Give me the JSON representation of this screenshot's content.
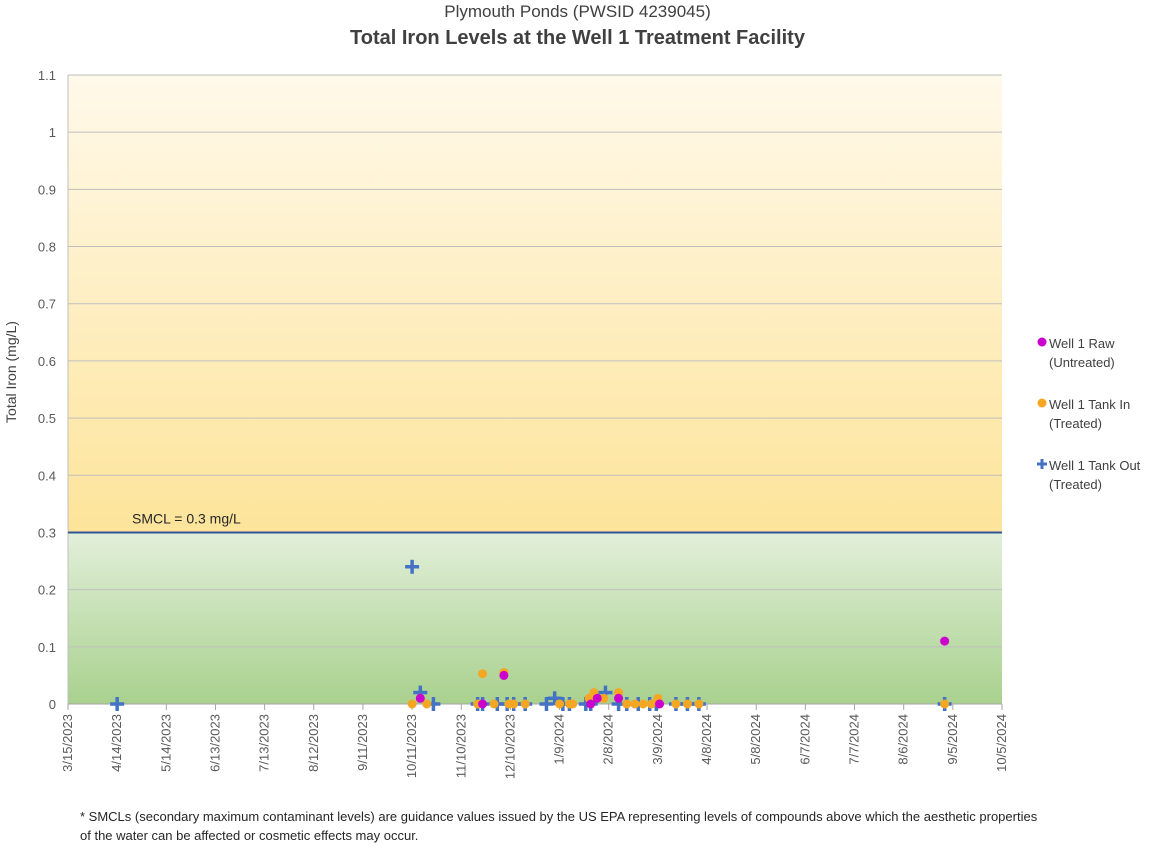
{
  "chart_data": {
    "type": "scatter",
    "subtitle": "Plymouth Ponds (PWSID 4239045)",
    "title": "Total Iron Levels at the Well 1 Treatment Facility",
    "ylabel": "Total Iron (mg/L)",
    "xlabel": "",
    "ylim": [
      0,
      1.1
    ],
    "y_ticks": [
      0,
      0.1,
      0.2,
      0.3,
      0.4,
      0.5,
      0.6,
      0.7,
      0.8,
      0.9,
      1,
      1.1
    ],
    "y_tick_labels": [
      "0",
      "0.1",
      "0.2",
      "0.3",
      "0.4",
      "0.5",
      "0.6",
      "0.7",
      "0.8",
      "0.9",
      "1",
      "1.1"
    ],
    "xlim": [
      "2023-03-15",
      "2024-10-05"
    ],
    "x_tick_labels": [
      "3/15/2023",
      "4/14/2023",
      "5/14/2023",
      "6/13/2023",
      "7/13/2023",
      "8/12/2023",
      "9/11/2023",
      "10/11/2023",
      "11/10/2023",
      "12/10/2023",
      "1/9/2024",
      "2/8/2024",
      "3/9/2024",
      "4/8/2024",
      "5/8/2024",
      "6/7/2024",
      "7/7/2024",
      "8/6/2024",
      "9/5/2024",
      "10/5/2024"
    ],
    "x_ticks": [
      "2023-03-15",
      "2023-04-14",
      "2023-05-14",
      "2023-06-13",
      "2023-07-13",
      "2023-08-12",
      "2023-09-11",
      "2023-10-11",
      "2023-11-10",
      "2023-12-10",
      "2024-01-09",
      "2024-02-08",
      "2024-03-09",
      "2024-04-08",
      "2024-05-08",
      "2024-06-07",
      "2024-07-07",
      "2024-08-06",
      "2024-09-05",
      "2024-10-05"
    ],
    "grid": true,
    "legend_position": "right",
    "reference_line": {
      "label": "SMCL = 0.3 mg/L",
      "y": 0.3,
      "color": "#2f5597"
    },
    "background_bands": [
      {
        "from": 0,
        "to": 0.3,
        "colors": [
          "#a9d18e",
          "#e2efda"
        ]
      },
      {
        "from": 0.3,
        "to": 1.1,
        "colors": [
          "#fde49a",
          "#fff9ea"
        ]
      }
    ],
    "series": [
      {
        "name": "Well 1 Raw\n(Untreated)",
        "marker": "circle",
        "color": "#cc00cc",
        "points": [
          [
            "2023-10-16",
            0.01
          ],
          [
            "2023-11-23",
            0
          ],
          [
            "2023-12-06",
            0.05
          ],
          [
            "2024-01-28",
            0
          ],
          [
            "2024-02-01",
            0.01
          ],
          [
            "2024-02-14",
            0.01
          ],
          [
            "2024-03-10",
            0
          ],
          [
            "2024-08-31",
            0.11
          ]
        ]
      },
      {
        "name": "Well 1 Tank In\n(Treated)",
        "marker": "circle",
        "color": "#f5a623",
        "points": [
          [
            "2023-10-11",
            0
          ],
          [
            "2023-10-20",
            0
          ],
          [
            "2023-11-20",
            0
          ],
          [
            "2023-11-23",
            0.053
          ],
          [
            "2023-11-30",
            0
          ],
          [
            "2023-12-06",
            0.055
          ],
          [
            "2023-12-09",
            0
          ],
          [
            "2023-12-12",
            0
          ],
          [
            "2023-12-19",
            0
          ],
          [
            "2024-01-09",
            0
          ],
          [
            "2024-01-15",
            0
          ],
          [
            "2024-01-17",
            0
          ],
          [
            "2024-01-27",
            0.01
          ],
          [
            "2024-01-30",
            0.02
          ],
          [
            "2024-02-05",
            0.01
          ],
          [
            "2024-02-14",
            0.02
          ],
          [
            "2024-02-19",
            0
          ],
          [
            "2024-02-24",
            0
          ],
          [
            "2024-02-29",
            0
          ],
          [
            "2024-03-05",
            0
          ],
          [
            "2024-03-09",
            0.01
          ],
          [
            "2024-03-20",
            0
          ],
          [
            "2024-03-27",
            0
          ],
          [
            "2024-04-03",
            0
          ],
          [
            "2024-08-31",
            0
          ]
        ]
      },
      {
        "name": "Well 1 Tank Out\n(Treated)",
        "marker": "plus",
        "color": "#4472c4",
        "points": [
          [
            "2023-04-14",
            0
          ],
          [
            "2023-10-11",
            0.24
          ],
          [
            "2023-10-16",
            0.02
          ],
          [
            "2023-10-24",
            0
          ],
          [
            "2023-11-20",
            0
          ],
          [
            "2023-11-23",
            0
          ],
          [
            "2023-12-02",
            0
          ],
          [
            "2023-12-08",
            0
          ],
          [
            "2023-12-12",
            0
          ],
          [
            "2023-12-19",
            0
          ],
          [
            "2024-01-01",
            0
          ],
          [
            "2024-01-06",
            0.01
          ],
          [
            "2024-01-11",
            0
          ],
          [
            "2024-01-15",
            0
          ],
          [
            "2024-01-25",
            0
          ],
          [
            "2024-01-28",
            0
          ],
          [
            "2024-02-06",
            0.02
          ],
          [
            "2024-02-14",
            0
          ],
          [
            "2024-02-19",
            0
          ],
          [
            "2024-02-26",
            0
          ],
          [
            "2024-03-04",
            0
          ],
          [
            "2024-03-08",
            0
          ],
          [
            "2024-03-20",
            0
          ],
          [
            "2024-03-27",
            0
          ],
          [
            "2024-04-03",
            0
          ],
          [
            "2024-08-31",
            0
          ]
        ]
      }
    ]
  },
  "footnote": "* SMCLs (secondary maximum contaminant levels) are guidance values issued by the US EPA representing levels of compounds above which the aesthetic properties of the water can be affected or cosmetic effects may occur."
}
